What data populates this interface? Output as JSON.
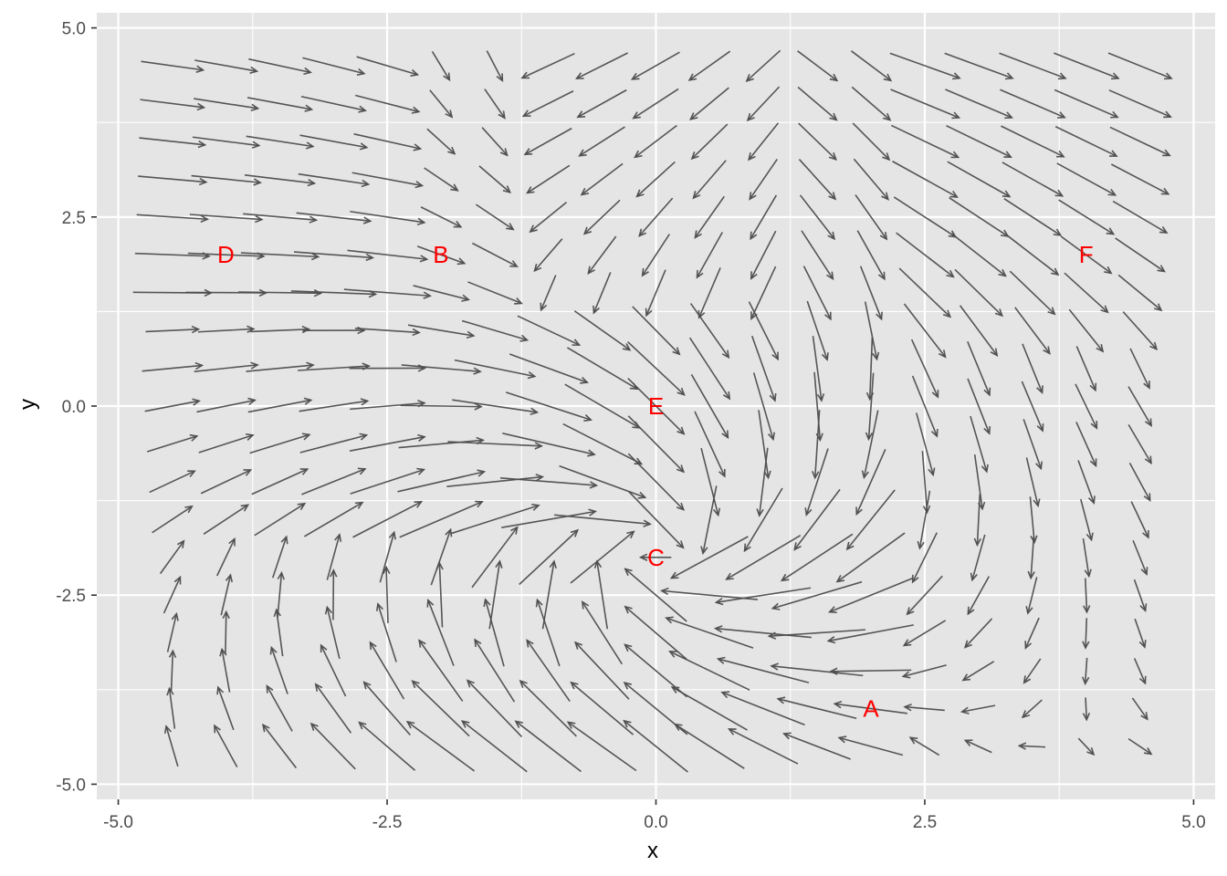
{
  "chart_data": {
    "type": "quiver",
    "xlabel": "x",
    "ylabel": "y",
    "xlim": [
      -5.2,
      5.2
    ],
    "ylim": [
      -5.2,
      5.2
    ],
    "x_ticks": [
      -5.0,
      -2.5,
      0.0,
      2.5,
      5.0
    ],
    "y_ticks": [
      -5.0,
      -2.5,
      0.0,
      2.5,
      5.0
    ],
    "x_tick_labels": [
      "-5.0",
      "-2.5",
      "0.0",
      "2.5",
      "5.0"
    ],
    "y_tick_labels": [
      "-5.0",
      "-2.5",
      "0.0",
      "2.5",
      "5.0"
    ],
    "grid": true,
    "panel_background": "#e5e5e5",
    "grid_color": "#ffffff",
    "arrow_color": "#4d4d4d",
    "label_color": "#ff0000",
    "grid_points": {
      "x": [
        -4.5,
        -4.0,
        -3.5,
        -3.0,
        -2.5,
        -2.0,
        -1.5,
        -1.0,
        -0.5,
        0.0,
        0.5,
        1.0,
        1.5,
        2.0,
        2.5,
        3.0,
        3.5,
        4.0,
        4.5
      ],
      "y": [
        -4.5,
        -4.0,
        -3.5,
        -3.0,
        -2.5,
        -2.0,
        -1.5,
        -1.0,
        -0.5,
        0.0,
        0.5,
        1.0,
        1.5,
        2.0,
        2.5,
        3.0,
        3.5,
        4.0,
        4.5
      ]
    },
    "field_description": "Direction field (dx, dy) sampled on a regular 19x19 grid; arrows drawn with length proportional to magnitude.",
    "points": [
      {
        "label": "A",
        "x": 2.0,
        "y": -4.0
      },
      {
        "label": "B",
        "x": -2.0,
        "y": 2.0
      },
      {
        "label": "C",
        "x": 0.0,
        "y": -2.0
      },
      {
        "label": "D",
        "x": -4.0,
        "y": 2.0
      },
      {
        "label": "E",
        "x": 0.0,
        "y": 0.0
      },
      {
        "label": "F",
        "x": 4.0,
        "y": 2.0
      }
    ]
  }
}
